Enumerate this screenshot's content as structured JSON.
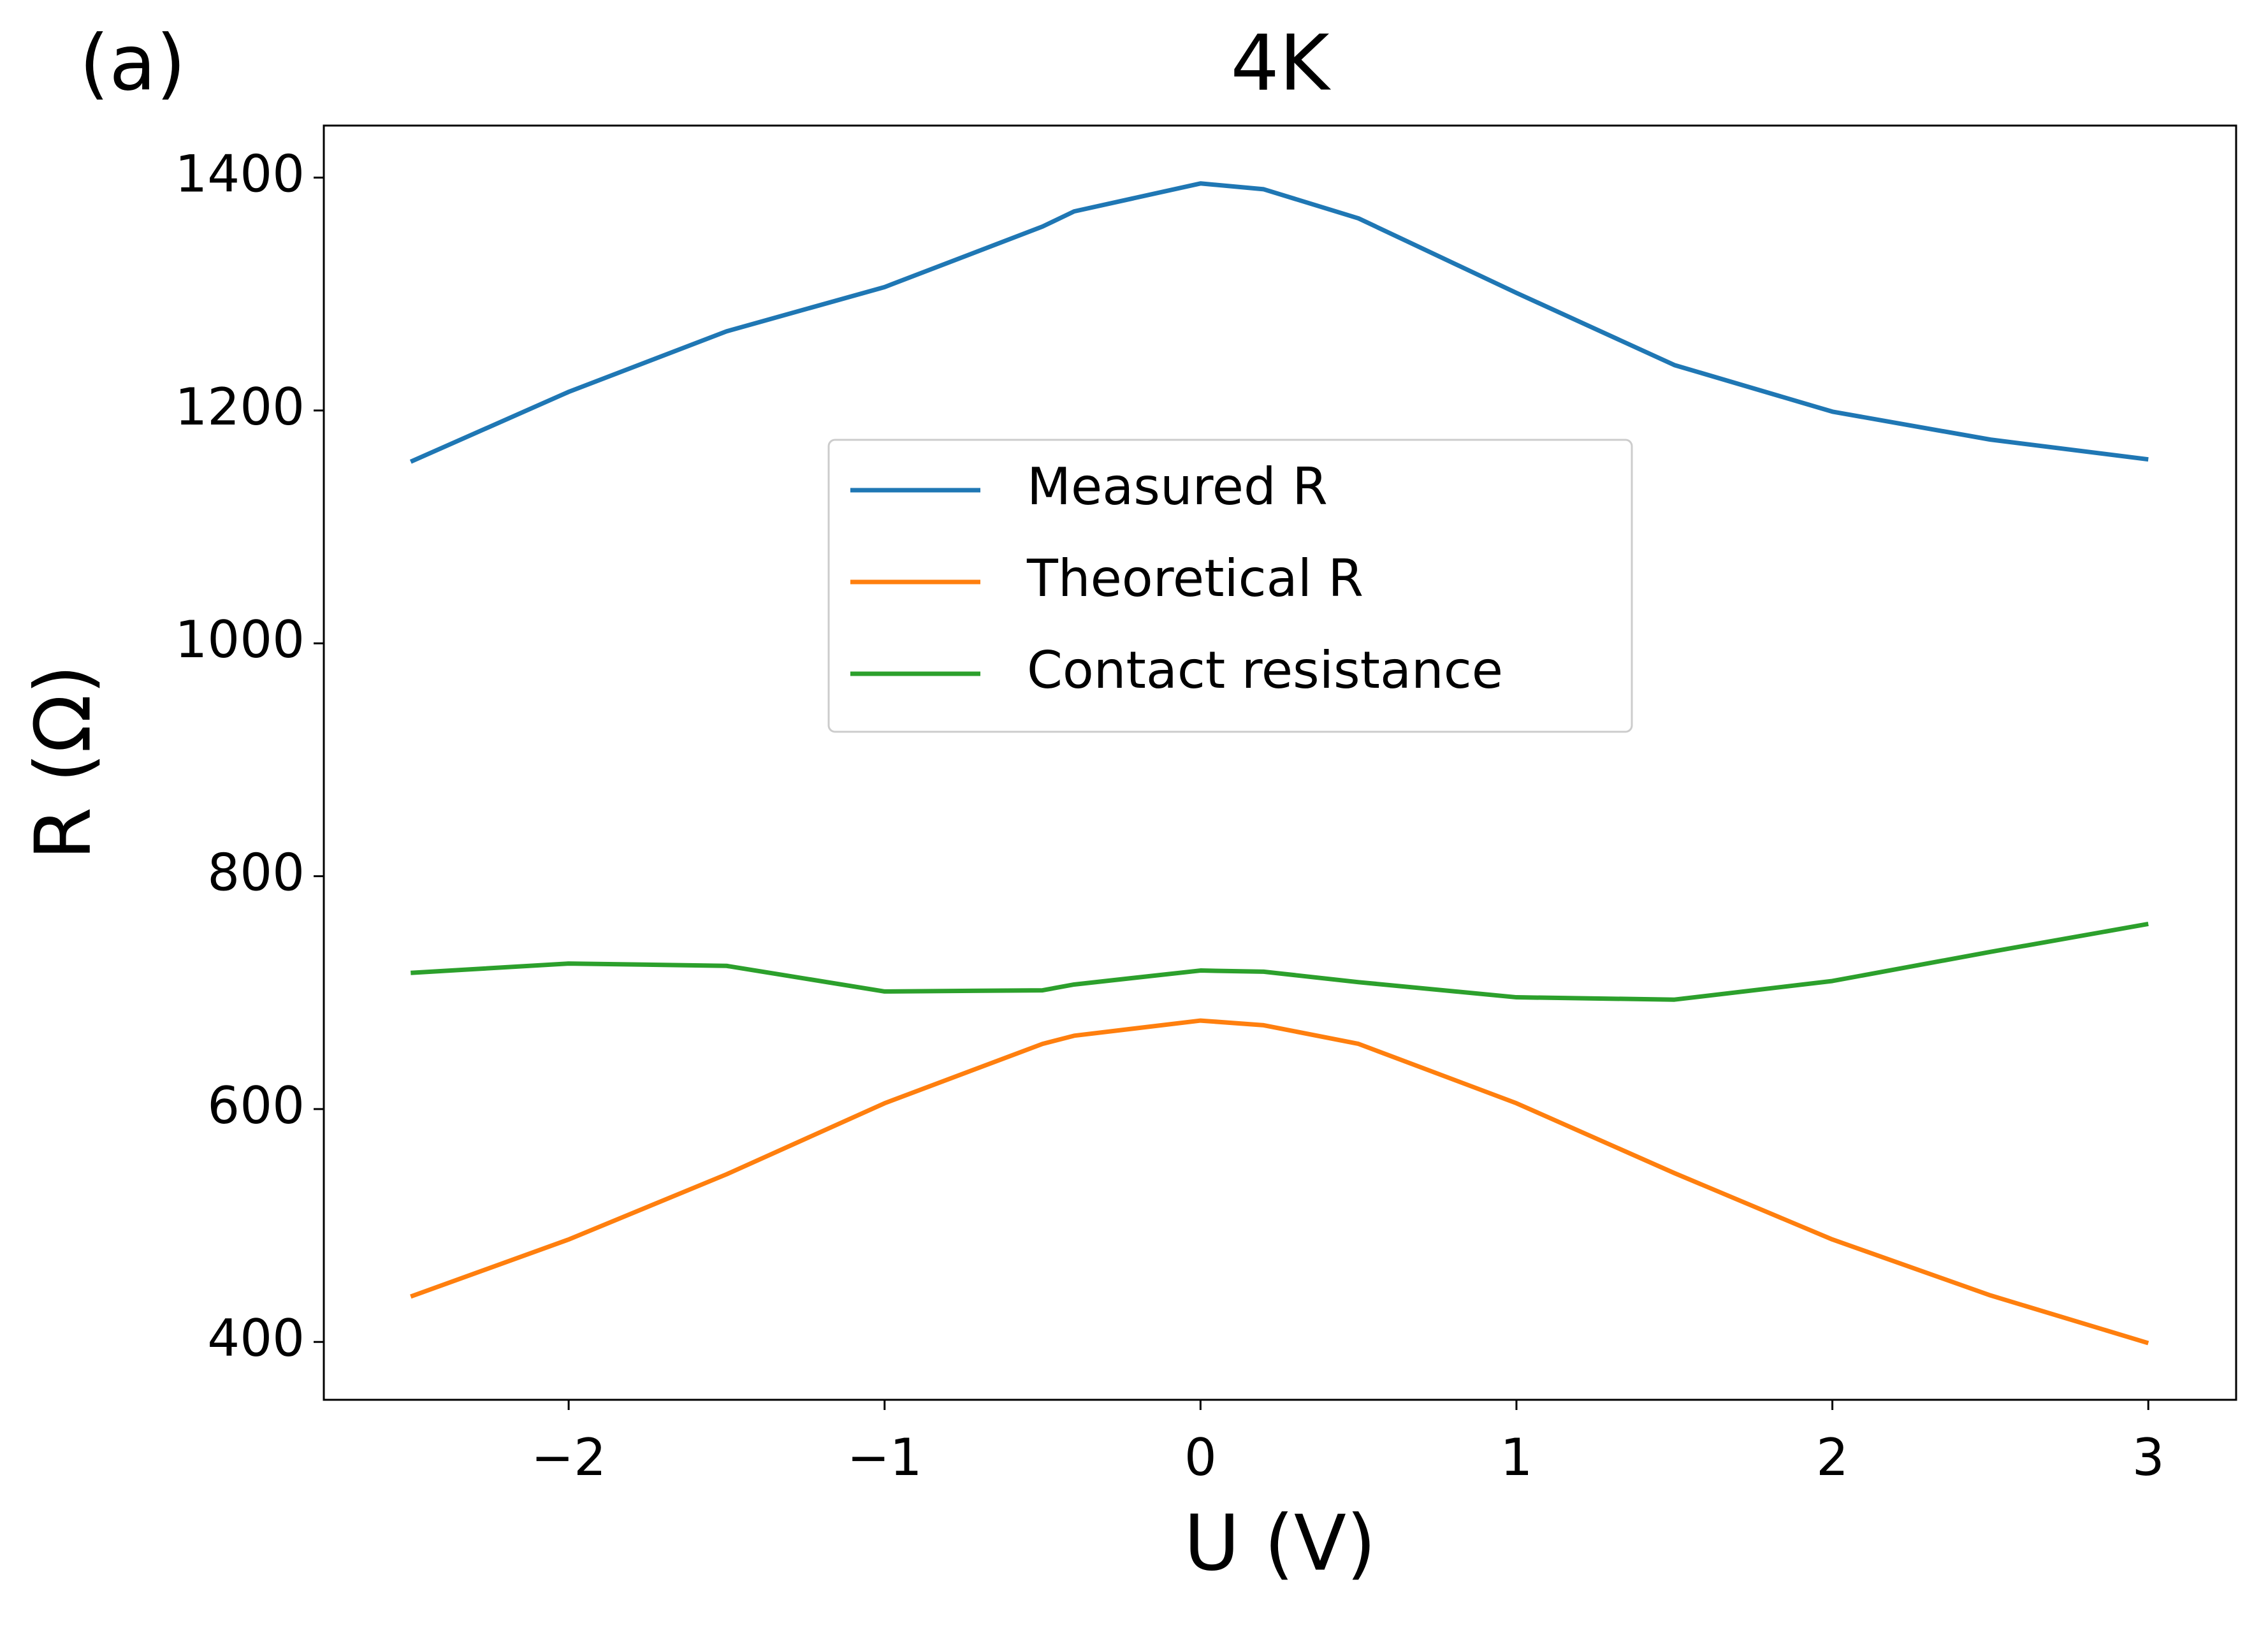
{
  "chart_data": {
    "type": "line",
    "title": "4K",
    "annotation": "(a)",
    "x_label": "U (V)",
    "y_label": "R (Ω)",
    "x": [
      -2.5,
      -2,
      -1.5,
      -1,
      -0.5,
      -0.4,
      0,
      0.2,
      0.5,
      1,
      1.5,
      2,
      2.5,
      3
    ],
    "series": [
      {
        "name": "Measured R",
        "color": "#1f77b4",
        "values": [
          1156,
          1216,
          1268,
          1306,
          1358,
          1371,
          1395,
          1390,
          1365,
          1301,
          1239,
          1199,
          1175,
          1158
        ]
      },
      {
        "name": "Theoretical R",
        "color": "#ff7f0e",
        "values": [
          439,
          488,
          544,
          605,
          656,
          663,
          676,
          672,
          656,
          605,
          545,
          488,
          440,
          399
        ]
      },
      {
        "name": "Contact resistance",
        "color": "#2ca02c",
        "values": [
          717,
          725,
          723,
          701,
          702,
          707,
          719,
          718,
          709,
          696,
          694,
          710,
          735,
          759
        ]
      }
    ],
    "xlim": [
      -2.775,
      3.278
    ],
    "ylim": [
      350.3,
      1444.7
    ],
    "xticks": [
      {
        "value": -2,
        "label": "−2"
      },
      {
        "value": -1,
        "label": "−1"
      },
      0,
      1,
      2,
      3
    ],
    "yticks": [
      400,
      600,
      800,
      1000,
      1200,
      1400
    ],
    "legend": "center",
    "grid": false
  }
}
